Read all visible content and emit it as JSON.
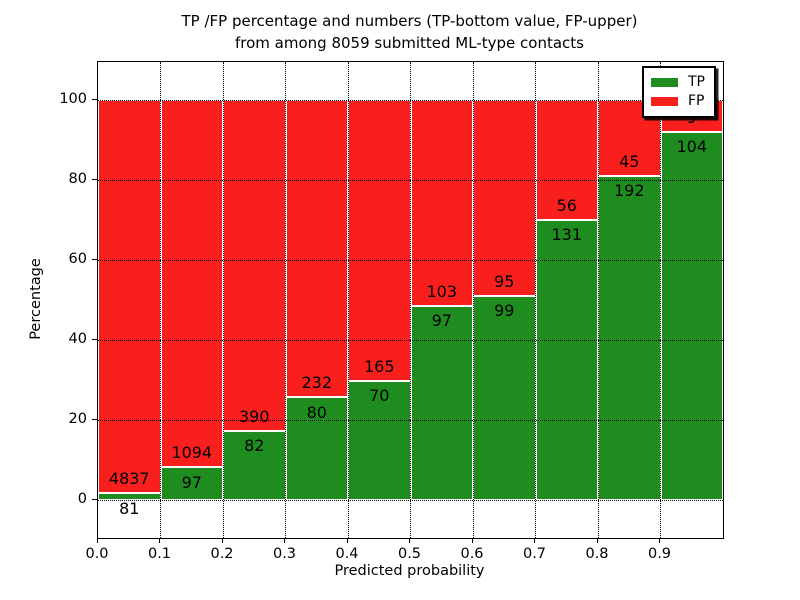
{
  "title": {
    "line1": "TP /FP percentage and numbers (TP-bottom value, FP-upper)",
    "line2": "from among 8059 submitted ML-type contacts"
  },
  "axes": {
    "xlabel": "Predicted probability",
    "ylabel": "Percentage"
  },
  "legend": [
    {
      "label": "TP",
      "color": "#1f8c1f"
    },
    {
      "label": "FP",
      "color": "#f91f1c"
    }
  ],
  "colors": {
    "tp": "#1f8c1f",
    "fp": "#f91f1c",
    "axis": "#000000",
    "background": "#ffffff"
  },
  "chart_data": {
    "type": "bar",
    "stacked": true,
    "normalized_to_percent": true,
    "title": "TP /FP percentage and numbers (TP-bottom value, FP-upper) from among 8059 submitted ML-type contacts",
    "total_contacts": 8059,
    "xlabel": "Predicted probability",
    "ylabel": "Percentage",
    "categories": [
      "0.0-0.1",
      "0.1-0.2",
      "0.2-0.3",
      "0.3-0.4",
      "0.4-0.5",
      "0.5-0.6",
      "0.6-0.7",
      "0.7-0.8",
      "0.8-0.9",
      "0.9-1.0"
    ],
    "series": [
      {
        "name": "TP",
        "counts": [
          81,
          97,
          82,
          80,
          70,
          97,
          99,
          131,
          192,
          104
        ]
      },
      {
        "name": "FP",
        "counts": [
          4837,
          1094,
          390,
          232,
          165,
          103,
          95,
          56,
          45,
          9
        ]
      }
    ],
    "tp_percent_approx": [
      1.65,
      8.14,
      17.37,
      25.64,
      29.79,
      48.5,
      51.03,
      70.05,
      81.01,
      92.04
    ],
    "xticklabels": [
      "0.0",
      "0.1",
      "0.2",
      "0.3",
      "0.4",
      "0.5",
      "0.6",
      "0.7",
      "0.8",
      "0.9"
    ],
    "yticks": [
      0,
      20,
      40,
      60,
      80,
      100
    ],
    "xlim": [
      0.0,
      1.0
    ],
    "ylim": [
      -10,
      110
    ],
    "grid": "dotted, drawn above bars",
    "legend_position": "upper right"
  }
}
